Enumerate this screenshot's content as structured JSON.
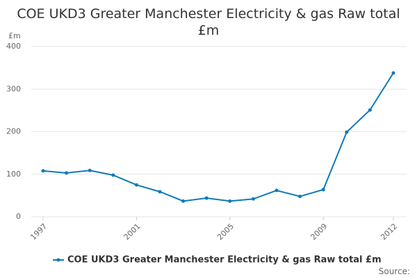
{
  "chart_data": {
    "type": "line",
    "title": "COE UKD3 Greater Manchester Electricity & gas Raw total £m",
    "y_label": "£m",
    "source": "Source:",
    "x": [
      1997,
      1998,
      1999,
      2000,
      2001,
      2002,
      2003,
      2004,
      2005,
      2006,
      2007,
      2008,
      2009,
      2010,
      2011,
      2012
    ],
    "series": [
      {
        "name": "COE UKD3 Greater Manchester Electricity & gas Raw total £m",
        "color": "#0f7ab8",
        "values": [
          108,
          103,
          109,
          98,
          75,
          59,
          37,
          44,
          37,
          42,
          62,
          48,
          64,
          199,
          251,
          338
        ]
      }
    ],
    "xlim": [
      1997,
      2012
    ],
    "xticks": [
      1997,
      2001,
      2005,
      2009,
      2012
    ],
    "ylim": [
      0,
      400
    ],
    "yticks": [
      0,
      100,
      200,
      300,
      400
    ],
    "grid": true
  }
}
